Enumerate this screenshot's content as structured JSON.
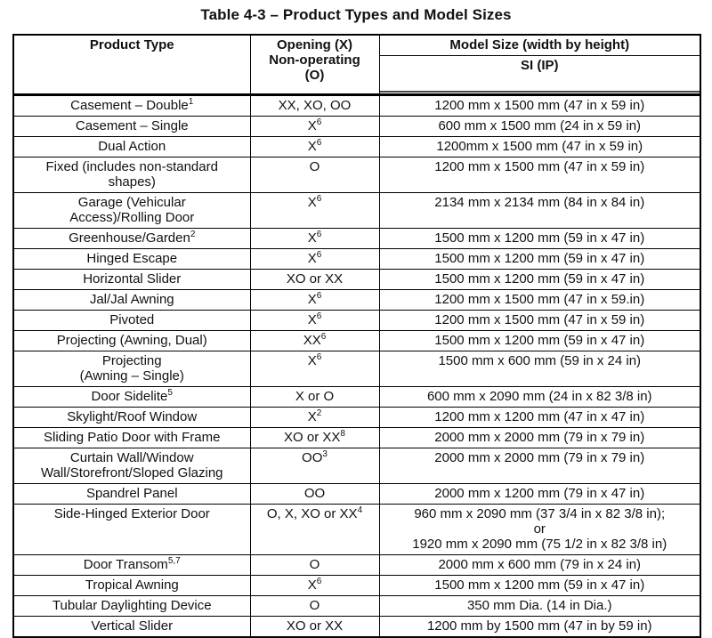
{
  "title": "Table 4-3 – Product Types and Model Sizes",
  "table": {
    "headers": {
      "product_type": "Product Type",
      "opening": "Opening (X)\nNon-operating\n(O)",
      "model_size": "Model Size (width by height)",
      "si_ip": "SI (IP)"
    },
    "rows": [
      {
        "product": [
          {
            "t": "Casement – Double"
          },
          {
            "s": "1"
          }
        ],
        "opening": [
          {
            "t": "XX, XO, OO"
          }
        ],
        "size": [
          {
            "t": "1200 mm x 1500 mm (47 in x 59 in)"
          }
        ]
      },
      {
        "product": [
          {
            "t": "Casement – Single"
          }
        ],
        "opening": [
          {
            "t": "X"
          },
          {
            "s": "6"
          }
        ],
        "size": [
          {
            "t": "600 mm x 1500 mm (24 in x 59 in)"
          }
        ]
      },
      {
        "product": [
          {
            "t": "Dual Action"
          }
        ],
        "opening": [
          {
            "t": "X"
          },
          {
            "s": "6"
          }
        ],
        "size": [
          {
            "t": "1200mm x 1500 mm (47 in x 59 in)"
          }
        ]
      },
      {
        "product": [
          {
            "t": "Fixed (includes non-standard"
          },
          {
            "b": true
          },
          {
            "t": "shapes)"
          }
        ],
        "opening": [
          {
            "t": "O"
          }
        ],
        "size": [
          {
            "t": "1200 mm x 1500 mm (47 in x 59 in)"
          }
        ]
      },
      {
        "product": [
          {
            "t": "Garage (Vehicular"
          },
          {
            "b": true
          },
          {
            "t": "Access)/Rolling Door"
          }
        ],
        "opening": [
          {
            "t": "X"
          },
          {
            "s": "6"
          }
        ],
        "size": [
          {
            "t": "2134 mm x 2134 mm (84 in x 84 in)"
          }
        ]
      },
      {
        "product": [
          {
            "t": "Greenhouse/Garden"
          },
          {
            "s": "2"
          }
        ],
        "opening": [
          {
            "t": "X"
          },
          {
            "s": "6"
          }
        ],
        "size": [
          {
            "t": "1500 mm x 1200 mm (59 in x 47 in)"
          }
        ]
      },
      {
        "product": [
          {
            "t": "Hinged Escape"
          }
        ],
        "opening": [
          {
            "t": "X"
          },
          {
            "s": "6"
          }
        ],
        "size": [
          {
            "t": "1500 mm x 1200 mm (59 in x 47 in)"
          }
        ]
      },
      {
        "product": [
          {
            "t": "Horizontal Slider"
          }
        ],
        "opening": [
          {
            "t": "XO or XX"
          }
        ],
        "size": [
          {
            "t": "1500 mm x 1200 mm (59 in x 47 in)"
          }
        ]
      },
      {
        "product": [
          {
            "t": "Jal/Jal Awning"
          }
        ],
        "opening": [
          {
            "t": "X"
          },
          {
            "s": "6"
          }
        ],
        "size": [
          {
            "t": "1200 mm x 1500 mm (47 in x 59.in)"
          }
        ]
      },
      {
        "product": [
          {
            "t": "Pivoted"
          }
        ],
        "opening": [
          {
            "t": "X"
          },
          {
            "s": "6"
          }
        ],
        "size": [
          {
            "t": "1200 mm x 1500 mm (47 in x 59 in)"
          }
        ]
      },
      {
        "product": [
          {
            "t": "Projecting (Awning, Dual)"
          }
        ],
        "opening": [
          {
            "t": "XX"
          },
          {
            "s": "6"
          }
        ],
        "size": [
          {
            "t": "1500 mm x 1200 mm (59 in x 47 in)"
          }
        ]
      },
      {
        "product": [
          {
            "t": "Projecting"
          },
          {
            "b": true
          },
          {
            "t": "(Awning – Single)"
          }
        ],
        "opening": [
          {
            "t": "X"
          },
          {
            "s": "6"
          }
        ],
        "size": [
          {
            "t": "1500 mm x 600 mm (59 in x 24 in)"
          }
        ]
      },
      {
        "product": [
          {
            "t": "Door Sidelite"
          },
          {
            "s": "5"
          }
        ],
        "opening": [
          {
            "t": "X or O"
          }
        ],
        "size": [
          {
            "t": "600 mm x 2090 mm (24 in x 82 3/8 in)"
          }
        ]
      },
      {
        "product": [
          {
            "t": "Skylight/Roof Window"
          }
        ],
        "opening": [
          {
            "t": "X"
          },
          {
            "s": "2"
          }
        ],
        "size": [
          {
            "t": "1200 mm x 1200 mm (47 in x 47 in)"
          }
        ]
      },
      {
        "product": [
          {
            "t": "Sliding Patio Door with Frame"
          }
        ],
        "opening": [
          {
            "t": "XO or XX"
          },
          {
            "s": "8"
          }
        ],
        "size": [
          {
            "t": "2000 mm x 2000 mm (79 in x 79 in)"
          }
        ]
      },
      {
        "product": [
          {
            "t": "Curtain Wall/Window"
          },
          {
            "b": true
          },
          {
            "t": "Wall/Storefront/Sloped Glazing"
          }
        ],
        "opening": [
          {
            "t": "OO"
          },
          {
            "s": "3"
          }
        ],
        "size": [
          {
            "t": "2000 mm x 2000 mm (79 in x 79 in)"
          }
        ]
      },
      {
        "product": [
          {
            "t": "Spandrel Panel"
          }
        ],
        "opening": [
          {
            "t": "OO"
          }
        ],
        "size": [
          {
            "t": "2000 mm x 1200 mm (79 in x 47 in)"
          }
        ]
      },
      {
        "product": [
          {
            "t": "Side-Hinged Exterior Door"
          }
        ],
        "opening": [
          {
            "t": "O, X, XO or XX"
          },
          {
            "s": "4"
          }
        ],
        "size": [
          {
            "t": "960 mm x 2090 mm (37 3/4 in x 82 3/8 in);"
          },
          {
            "b": true
          },
          {
            "t": "or"
          },
          {
            "b": true
          },
          {
            "t": "1920 mm x 2090 mm (75 1/2 in x 82 3/8 in)"
          }
        ]
      },
      {
        "product": [
          {
            "t": "Door Transom"
          },
          {
            "s": "5,7"
          }
        ],
        "opening": [
          {
            "t": "O"
          }
        ],
        "size": [
          {
            "t": "2000 mm x 600 mm (79 in x 24 in)"
          }
        ]
      },
      {
        "product": [
          {
            "t": "Tropical Awning"
          }
        ],
        "opening": [
          {
            "t": "X"
          },
          {
            "s": "6"
          }
        ],
        "size": [
          {
            "t": "1500 mm x 1200 mm (59 in x 47 in)"
          }
        ]
      },
      {
        "product": [
          {
            "t": "Tubular Daylighting Device"
          }
        ],
        "opening": [
          {
            "t": "O"
          }
        ],
        "size": [
          {
            "t": "350 mm Dia. (14 in Dia.)"
          }
        ]
      },
      {
        "product": [
          {
            "t": "Vertical Slider"
          }
        ],
        "opening": [
          {
            "t": "XO or XX"
          }
        ],
        "size": [
          {
            "t": "1200 mm by 1500 mm (47 in by 59 in)"
          }
        ]
      }
    ]
  }
}
